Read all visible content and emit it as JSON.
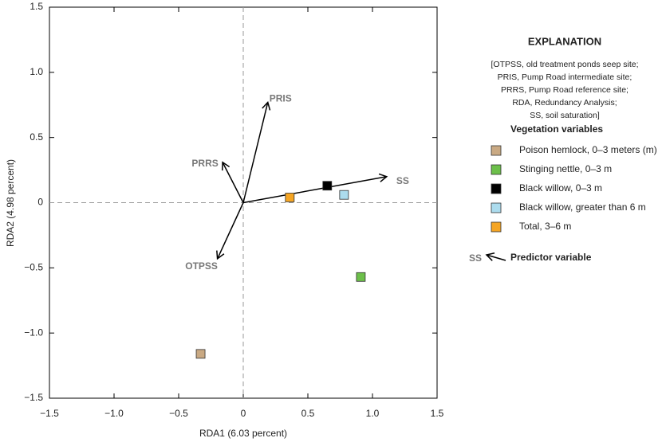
{
  "chart_data": {
    "type": "biplot",
    "xlabel": "RDA1 (6.03 percent)",
    "ylabel": "RDA2 (4.98 percent)",
    "xlim": [
      -1.5,
      1.5
    ],
    "ylim": [
      -1.5,
      1.5
    ],
    "xticks": [
      {
        "value": -1.5,
        "label": "−1.5"
      },
      {
        "value": -1.0,
        "label": "−1.0"
      },
      {
        "value": -0.5,
        "label": "−0.5"
      },
      0,
      0.5,
      {
        "value": 1.0,
        "label": "1.0"
      },
      1.5
    ],
    "yticks": [
      {
        "value": -1.5,
        "label": "−1.5"
      },
      {
        "value": -1.0,
        "label": "−1.0"
      },
      {
        "value": -0.5,
        "label": "−0.5"
      },
      0,
      0.5,
      {
        "value": 1.0,
        "label": "1.0"
      },
      1.5
    ],
    "series": [
      {
        "name": "Poison hemlock, 0–3 meters (m)",
        "color": "#c9a983",
        "x": [
          -0.33
        ],
        "values": [
          -1.16
        ]
      },
      {
        "name": "Stinging nettle, 0–3 m",
        "color": "#6cbf4a",
        "x": [
          0.91
        ],
        "values": [
          -0.57
        ]
      },
      {
        "name": "Black willow, 0–3 m",
        "color": "#000000",
        "x": [
          0.65
        ],
        "values": [
          0.13
        ]
      },
      {
        "name": "Black willow, greater than 6 m",
        "color": "#acdcee",
        "x": [
          0.78
        ],
        "values": [
          0.06
        ]
      },
      {
        "name": "Total, 3–6 m",
        "color": "#f5a524",
        "x": [
          0.36
        ],
        "values": [
          0.04
        ]
      }
    ],
    "vectors": [
      {
        "name": "PRIS",
        "x": 0.19,
        "y": 0.77
      },
      {
        "name": "PRRS",
        "x": -0.16,
        "y": 0.31
      },
      {
        "name": "SS",
        "x": 1.11,
        "y": 0.2
      },
      {
        "name": "OTPSS",
        "x": -0.2,
        "y": -0.43
      }
    ],
    "legend_title": "EXPLANATION",
    "legend_note": [
      "[OTPSS, old treatment ponds seep site;",
      "PRIS, Pump Road intermediate site;",
      "PRRS, Pump Road reference site;",
      "RDA, Redundancy Analysis;",
      "SS, soil saturation]"
    ],
    "legend_group": "Vegetation variables",
    "predictor_legend": {
      "symbol": "SS",
      "text": "Predictor variable"
    }
  }
}
